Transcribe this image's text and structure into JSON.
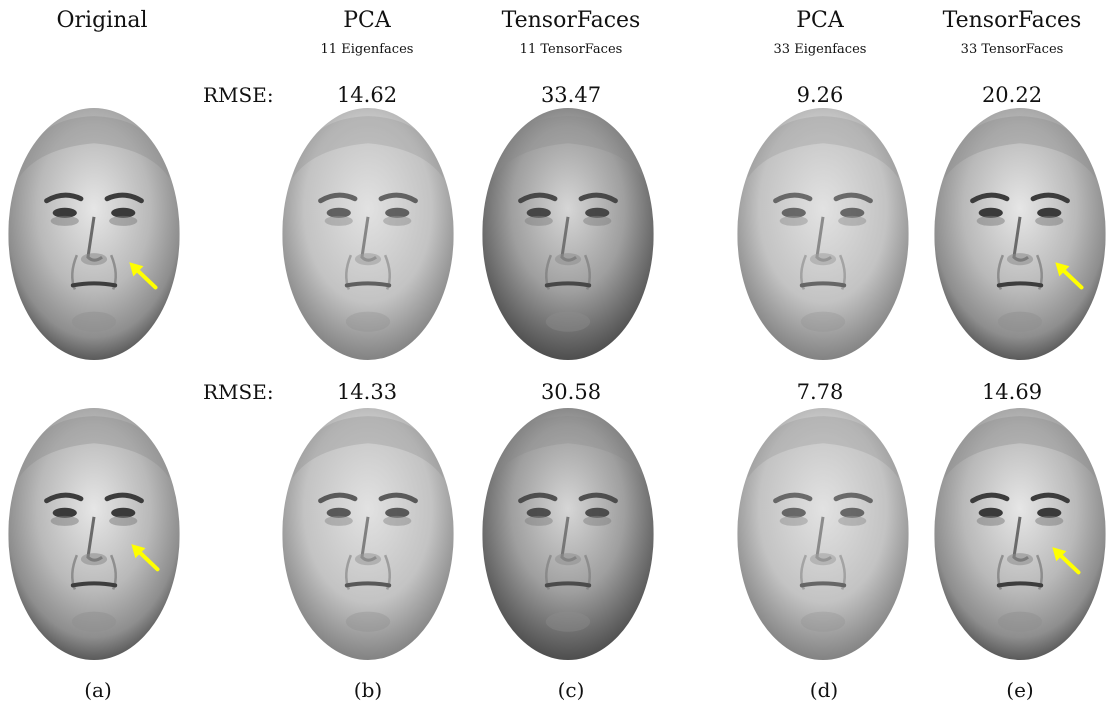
{
  "columns": [
    {
      "id": "a",
      "title": "Original",
      "subtitle": "",
      "tag": "(a)"
    },
    {
      "id": "b",
      "title": "PCA",
      "subtitle": "11 Eigenfaces",
      "tag": "(b)"
    },
    {
      "id": "c",
      "title": "TensorFaces",
      "subtitle": "11 TensorFaces",
      "tag": "(c)"
    },
    {
      "id": "d",
      "title": "PCA",
      "subtitle": "33 Eigenfaces",
      "tag": "(d)"
    },
    {
      "id": "e",
      "title": "TensorFaces",
      "subtitle": "33 TensorFaces",
      "tag": "(e)"
    }
  ],
  "rows": [
    {
      "rmse_label": "RMSE:",
      "rmse": [
        "14.62",
        "33.47",
        "9.26",
        "20.22"
      ],
      "arrow_color": "#ffff00"
    },
    {
      "rmse_label": "RMSE:",
      "rmse": [
        "14.33",
        "30.58",
        "7.78",
        "14.69"
      ],
      "arrow_color": "#ffff00"
    }
  ]
}
